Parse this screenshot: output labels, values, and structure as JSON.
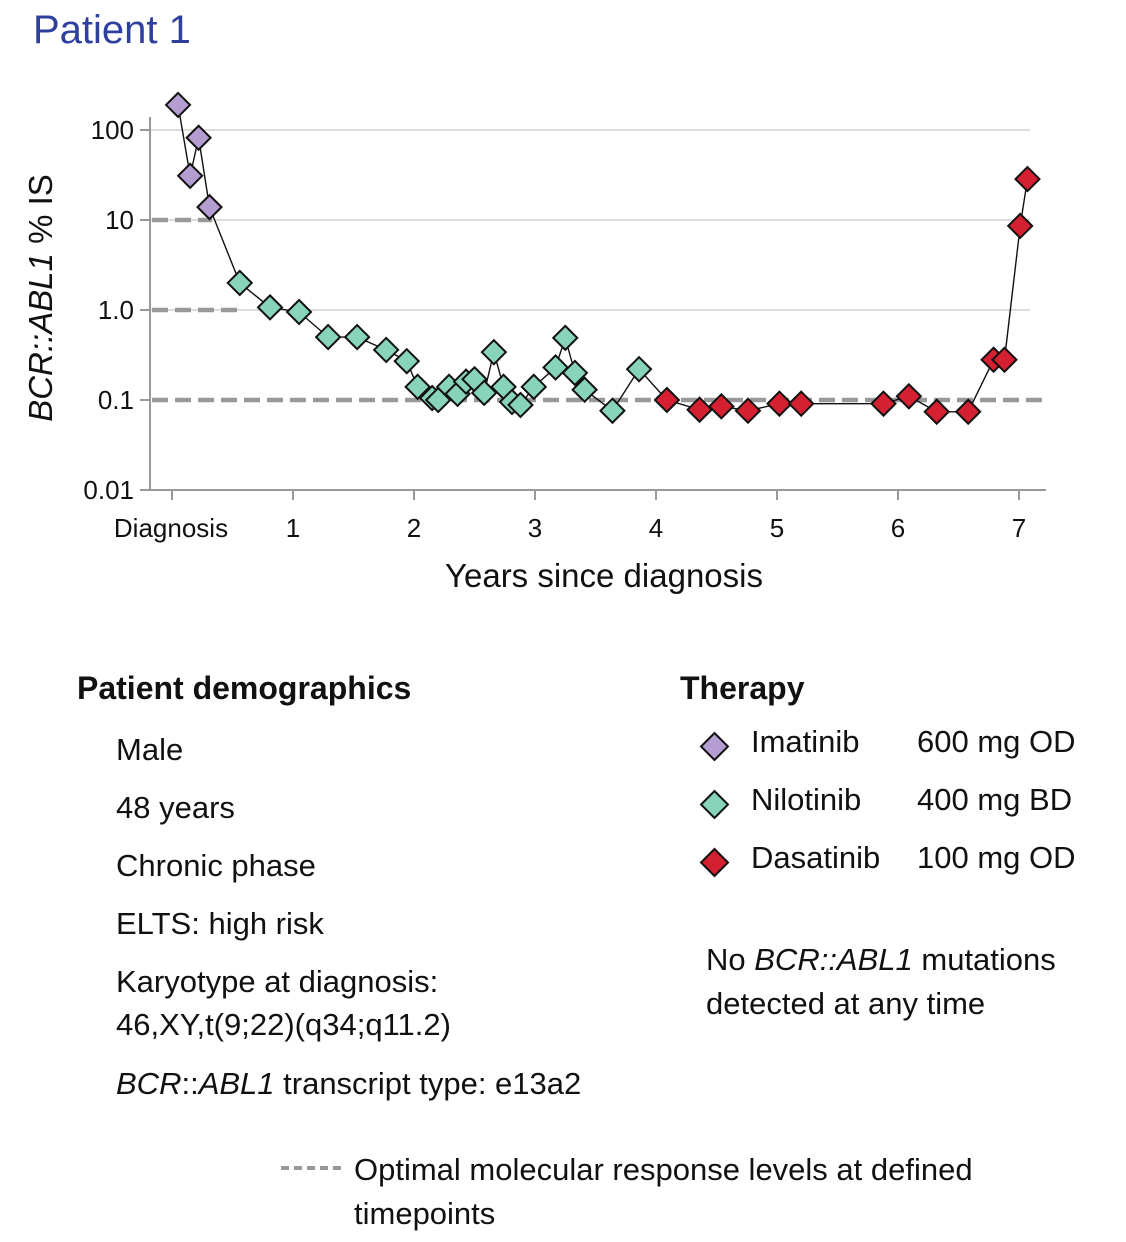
{
  "title": "Patient 1",
  "chart_data": {
    "type": "scatter",
    "title": "Patient 1",
    "xlabel": "Years since diagnosis",
    "ylabel_italic": "BCR::ABL1",
    "ylabel_rest": " % IS",
    "yscale": "log",
    "ylim": [
      0.01,
      200
    ],
    "xlim": [
      -0.2,
      7.3
    ],
    "yticks": [
      100,
      10,
      1.0,
      0.1,
      0.01
    ],
    "ytick_labels": [
      "100",
      "10",
      "1.0",
      "0.1",
      "0.01"
    ],
    "xticks": [
      0,
      1,
      2,
      3,
      4,
      5,
      6,
      7
    ],
    "xtick_labels": [
      "Diagnosis",
      "1",
      "2",
      "3",
      "4",
      "5",
      "6",
      "7"
    ],
    "grid": "horizontal at 100, 10, 1.0",
    "connected": true,
    "series": [
      {
        "name": "Imatinib",
        "color": "#b49dd0",
        "x": [
          0.05,
          0.15,
          0.22,
          0.31
        ],
        "y": [
          190,
          31,
          82,
          13.9
        ]
      },
      {
        "name": "Nilotinib",
        "color": "#88d4bb",
        "x": [
          0.56,
          0.81,
          1.05,
          1.29,
          1.53,
          1.77,
          1.94,
          2.03,
          2.15,
          2.2,
          2.29,
          2.36,
          2.43,
          2.5,
          2.58,
          2.66,
          2.74,
          2.81,
          2.88,
          2.99,
          3.17,
          3.25,
          3.33,
          3.41,
          3.64,
          3.86
        ],
        "y": [
          2.0,
          1.07,
          0.95,
          0.5,
          0.5,
          0.36,
          0.27,
          0.14,
          0.105,
          0.1,
          0.14,
          0.117,
          0.16,
          0.17,
          0.12,
          0.34,
          0.14,
          0.095,
          0.088,
          0.14,
          0.23,
          0.49,
          0.2,
          0.13,
          0.076,
          0.22
        ]
      },
      {
        "name": "Dasatinib",
        "color": "#d42030",
        "x": [
          4.09,
          4.36,
          4.54,
          4.76,
          5.02,
          5.2,
          5.88,
          6.09,
          6.32,
          6.58,
          6.79,
          6.88,
          7.01,
          7.07
        ],
        "y": [
          0.1,
          0.078,
          0.085,
          0.076,
          0.091,
          0.091,
          0.091,
          0.11,
          0.074,
          0.074,
          0.28,
          0.28,
          8.6,
          28.5
        ]
      }
    ],
    "reference_lines": [
      {
        "label": "Optimal molecular response level",
        "y": 10,
        "x_end": 0.33
      },
      {
        "label": "Optimal molecular response level",
        "y": 1.0,
        "x_end": 0.58
      },
      {
        "label": "Optimal molecular response level",
        "y": 0.1,
        "x_end": 7.2
      }
    ]
  },
  "demographics": {
    "heading": "Patient demographics",
    "sex": "Male",
    "age": "48 years",
    "phase": "Chronic phase",
    "elts": "ELTS: high risk",
    "karyotype_label": "Karyotype at diagnosis:",
    "karyotype_value": "46,XY,t(9;22)(q34;q11.2)",
    "transcript_gene_a": "BCR",
    "transcript_sep": "::",
    "transcript_gene_b": "ABL1",
    "transcript_rest": " transcript type: e13a2"
  },
  "therapy": {
    "heading": "Therapy",
    "items": [
      {
        "drug": "Imatinib",
        "dose": "600 mg OD",
        "color": "#b49dd0"
      },
      {
        "drug": "Nilotinib",
        "dose": "400 mg BD",
        "color": "#88d4bb"
      },
      {
        "drug": "Dasatinib",
        "dose": "100 mg OD",
        "color": "#d42030"
      }
    ],
    "note_prefix": "No ",
    "note_gene": "BCR::ABL1",
    "note_suffix": " mutations detected at any time"
  },
  "legend": {
    "text": "Optimal molecular response levels at defined timepoints"
  }
}
